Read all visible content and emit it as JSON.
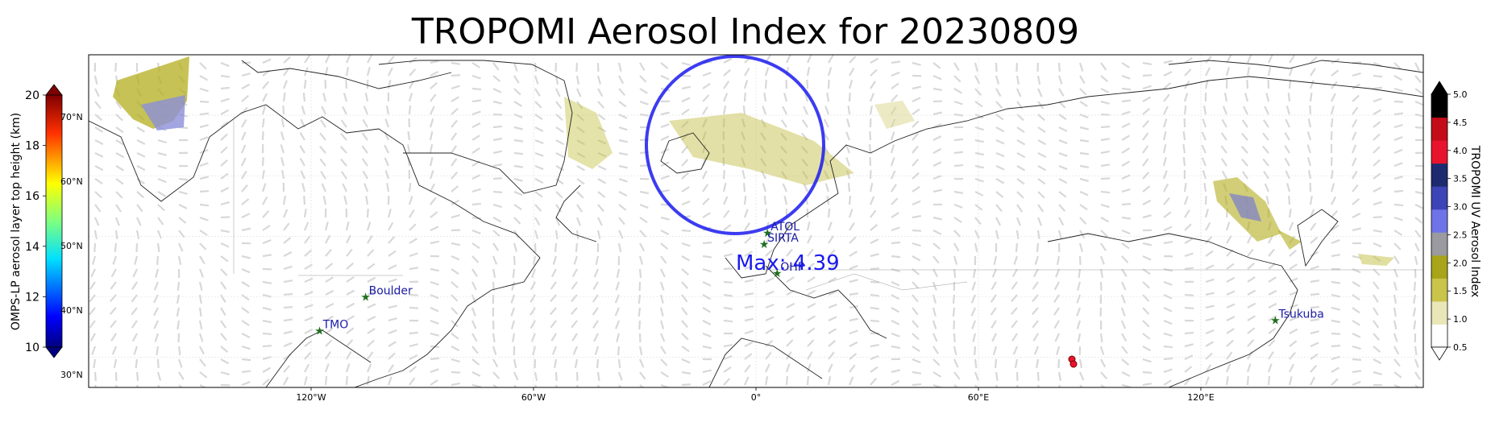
{
  "title": "TROPOMI Aerosol Index for 20230809",
  "max_label": "Max: 4.39",
  "longitude_ticks": [
    {
      "lon": -120,
      "label": "120°W"
    },
    {
      "lon": -60,
      "label": "60°W"
    },
    {
      "lon": 0,
      "label": "0°"
    },
    {
      "lon": 60,
      "label": "60°E"
    },
    {
      "lon": 120,
      "label": "120°E"
    }
  ],
  "latitude_labels": [
    {
      "lat": 70,
      "label": "70°N"
    },
    {
      "lat": 60,
      "label": "60°N"
    },
    {
      "lat": 50,
      "label": "50°N"
    },
    {
      "lat": 40,
      "label": "40°N"
    },
    {
      "lat": 30,
      "label": "30°N"
    }
  ],
  "stations": [
    {
      "name": "TMO",
      "lon": -117.7,
      "lat": 34.4
    },
    {
      "name": "Boulder",
      "lon": -105.3,
      "lat": 40.0
    },
    {
      "name": "ATOLL",
      "label": "ATOL",
      "lon": 3.1,
      "lat": 50.6
    },
    {
      "name": "SIRTA",
      "lon": 2.2,
      "lat": 48.7
    },
    {
      "name": "OHP",
      "lon": 5.7,
      "lat": 43.9
    },
    {
      "name": "Tsukuba",
      "lon": 140.1,
      "lat": 36.1
    }
  ],
  "left_colorbar": {
    "label": "OMPS-LP aerosol layer top height (km)",
    "min": 10,
    "max": 20,
    "ticks": [
      "10",
      "12",
      "14",
      "16",
      "18",
      "20"
    ],
    "colormap": "jet"
  },
  "right_colorbar": {
    "label": "TROPOMI UV Aerosol Index",
    "min": 0.5,
    "max": 5.0,
    "ticks": [
      "0.5",
      "1.0",
      "1.5",
      "2.0",
      "2.5",
      "3.0",
      "3.5",
      "4.0",
      "4.5",
      "5.0"
    ],
    "colors": [
      "#ffffff",
      "#e9e6b8",
      "#c9c44a",
      "#a8a51a",
      "#9a9aa0",
      "#6f73e8",
      "#3d44b5",
      "#1e2a70",
      "#e8142d",
      "#c40c18",
      "#000000"
    ]
  },
  "map": {
    "projection": "PlateCarree",
    "lon_range": [
      -180,
      180
    ],
    "lat_range": [
      25,
      80
    ],
    "coastline_color": "#000000",
    "wind_arrow_color": "#b8b8b8",
    "max_circle_color": "#1a1aee"
  }
}
